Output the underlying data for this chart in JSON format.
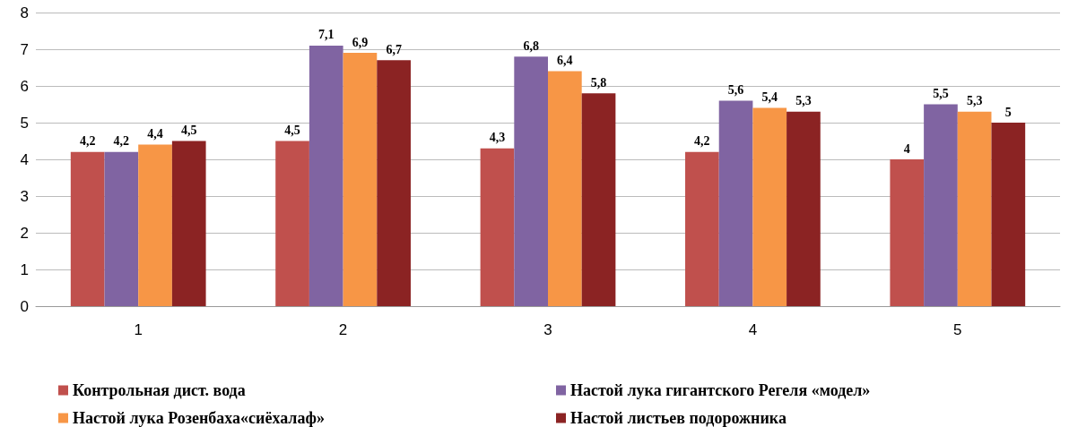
{
  "chart_data": {
    "type": "bar",
    "categories": [
      "1",
      "2",
      "3",
      "4",
      "5"
    ],
    "series": [
      {
        "name": "Контрольная дист. вода",
        "color": "#c0504d",
        "values": [
          4.2,
          4.5,
          4.3,
          4.2,
          4
        ],
        "value_labels": [
          "4,2",
          "4,5",
          "4,3",
          "4,2",
          "4"
        ]
      },
      {
        "name": "Настой лука гигантского Регеля «модел»",
        "color": "#8064a2",
        "values": [
          4.2,
          7.1,
          6.8,
          5.6,
          5.5
        ],
        "value_labels": [
          "4,2",
          "7,1",
          "6,8",
          "5,6",
          "5,5"
        ]
      },
      {
        "name": "Настой лука Розенбаха«сиёхалаф»",
        "color": "#f79646",
        "values": [
          4.4,
          6.9,
          6.4,
          5.4,
          5.3
        ],
        "value_labels": [
          "4,4",
          "6,9",
          "6,4",
          "5,4",
          "5,3"
        ]
      },
      {
        "name": "Настой листьев подорожника",
        "color": "#8b2323",
        "values": [
          4.5,
          6.7,
          5.8,
          5.3,
          5
        ],
        "value_labels": [
          "4,5",
          "6,7",
          "5,8",
          "5,3",
          "5"
        ]
      }
    ],
    "ylim": [
      0,
      8
    ],
    "yticks": [
      0,
      1,
      2,
      3,
      4,
      5,
      6,
      7,
      8
    ],
    "grid": "y",
    "legend": "bottom"
  }
}
